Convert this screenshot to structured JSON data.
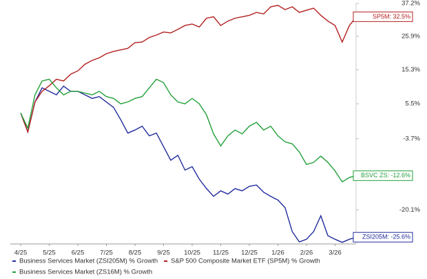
{
  "chart_data": {
    "type": "line",
    "y_scale": "log-growth",
    "categories": [
      "4/25",
      null,
      null,
      null,
      "5/25",
      null,
      null,
      null,
      "6/25",
      null,
      null,
      null,
      "7/25",
      null,
      null,
      null,
      "8/25",
      null,
      null,
      null,
      "9/25",
      null,
      null,
      null,
      "10/25",
      null,
      null,
      null,
      "11/25",
      null,
      null,
      null,
      "12/25",
      null,
      null,
      null,
      "1/26",
      null,
      null,
      null,
      "2/26",
      null,
      null,
      null,
      "3/26",
      null,
      null,
      null
    ],
    "ylim": [
      -26.9,
      37.2
    ],
    "yticks": [
      {
        "value": 37.2,
        "label": "37.2%"
      },
      {
        "value": 25.9,
        "label": "25.9%"
      },
      {
        "value": 15.3,
        "label": "15.3%"
      },
      {
        "value": 5.5,
        "label": "5.5%"
      },
      {
        "value": -3.7,
        "label": "-3.7%"
      },
      {
        "value": -20.1,
        "label": "-20.1%"
      }
    ],
    "series": [
      {
        "name": "Business Services Market (ZSI205M) % Growth",
        "color": "#1f2a9c",
        "end_label": "ZSI205M: -25.6%",
        "values": [
          3,
          -2,
          6,
          10,
          9,
          8,
          10.5,
          9,
          9,
          8,
          7,
          7.5,
          6,
          4.5,
          1.2,
          -2.3,
          -1.5,
          -0.5,
          -3,
          -2.3,
          -5.7,
          -9,
          -7.8,
          -11.3,
          -10.5,
          -13.4,
          -15.5,
          -17.2,
          -16,
          -16.7,
          -15.5,
          -16,
          -15,
          -14.7,
          -16.3,
          -17.2,
          -18,
          -19.6,
          -24.5,
          -26.5,
          -26,
          -24.5,
          -21.3,
          -25.3,
          -26,
          -26.6,
          -26,
          -25.6
        ]
      },
      {
        "name": "S&P 500 Composite Market ETF (SP5M) % Growth",
        "color": "#b41e1e",
        "end_label": "SP5M: 32.5%",
        "values": [
          3,
          -2,
          6,
          9,
          10.6,
          12.5,
          12,
          14,
          15,
          17,
          18.2,
          19,
          20.3,
          21,
          21.5,
          22,
          23.8,
          24,
          25.5,
          26.3,
          27.3,
          27,
          28.2,
          29.5,
          30,
          29,
          32,
          32.5,
          29.5,
          31,
          32,
          32.5,
          33,
          34,
          33.5,
          36,
          36.5,
          35,
          36,
          34,
          34.8,
          35.5,
          33,
          31,
          29.5,
          24,
          29.5,
          32.5
        ]
      },
      {
        "name": "Business Services Market (ZS16M) % Growth",
        "color": "#22a03a",
        "end_label": "BSVC ZS: -12.6%",
        "values": [
          3,
          -1,
          8,
          12,
          12.5,
          10,
          8,
          9,
          9,
          8.5,
          8,
          9,
          7.5,
          7,
          5.5,
          6,
          7,
          7.5,
          10,
          12.5,
          11.5,
          8,
          6,
          5.5,
          7,
          5.5,
          2.5,
          -2.5,
          -5.5,
          -3,
          -1.5,
          -2.5,
          -0.5,
          0.5,
          -1.5,
          -0.5,
          -3,
          -4.5,
          -5,
          -7,
          -10,
          -9.5,
          -8,
          -9.5,
          -11.5,
          -14,
          -13,
          -12.6
        ]
      }
    ]
  }
}
